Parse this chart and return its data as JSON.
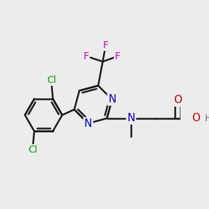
{
  "background_color": "#ececec",
  "atom_colors": {
    "C": "#000000",
    "N": "#0000cc",
    "O": "#cc0000",
    "F": "#cc00cc",
    "Cl": "#00aa00",
    "H": "#777777"
  },
  "bond_color": "#1a1a1a",
  "bond_width": 1.8,
  "fig_width": 3.0,
  "fig_height": 3.0,
  "dpi": 100,
  "xlim": [
    -2.8,
    3.2
  ],
  "ylim": [
    -2.6,
    2.4
  ]
}
